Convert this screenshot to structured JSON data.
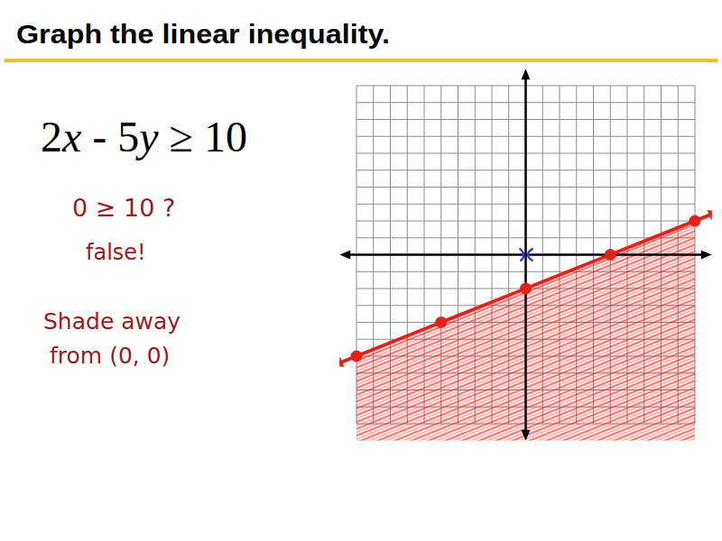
{
  "chart_data": {
    "type": "line",
    "title": "Graph the linear inequality.",
    "subtitle": "2x - 5y ≥ 10",
    "annotations": [
      "0 ≥ 10  ?",
      "false!",
      "Shade away",
      "from (0, 0)"
    ],
    "x": [
      -10,
      -5,
      0,
      5,
      10
    ],
    "series": [
      {
        "type": "area",
        "color": "#e8201a",
        "marker": "circle",
        "values": [
          -6,
          -4,
          -2,
          0,
          2
        ]
      }
    ],
    "xlim": [
      -11,
      11
    ],
    "ylim": [
      -11,
      11
    ],
    "xticks": [
      -10,
      -9,
      -8,
      -7,
      -6,
      -5,
      -4,
      -3,
      -2,
      -1,
      0,
      1,
      2,
      3,
      4,
      5,
      6,
      7,
      8,
      9,
      10
    ],
    "yticks": [
      -10,
      -9,
      -8,
      -7,
      -6,
      -5,
      -4,
      -3,
      -2,
      -1,
      0,
      1,
      2,
      3,
      4,
      5,
      6,
      7,
      8,
      9,
      10
    ],
    "grid": true,
    "tick_labels": false,
    "test_point": {
      "x": 0,
      "y": 0,
      "color": "#2a3fd8"
    }
  }
}
